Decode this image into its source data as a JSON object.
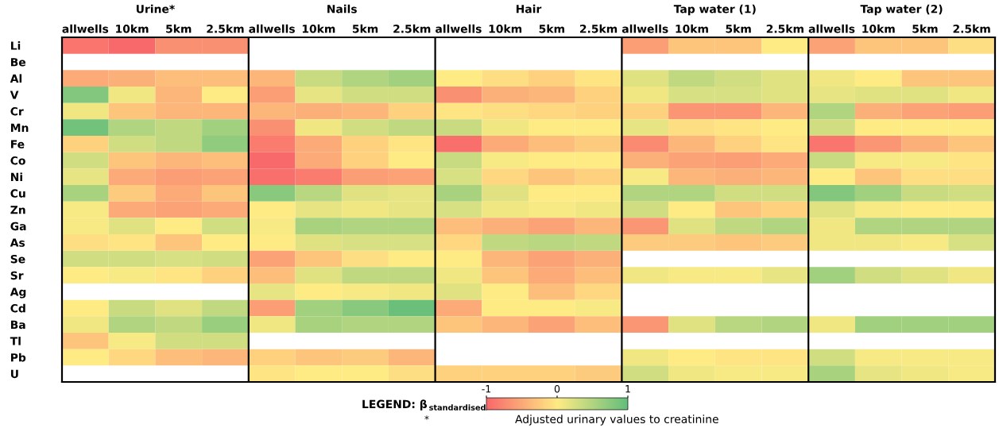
{
  "chart_data": {
    "type": "heatmap",
    "categories": [
      "allwells",
      "10km",
      "5km",
      "2.5km",
      "allwells",
      "10km",
      "5km",
      "2.5km",
      "allwells",
      "10km",
      "5km",
      "2.5km",
      "allwells",
      "10km",
      "5km",
      "2.5km",
      "allwells",
      "10km",
      "5km",
      "2.5km"
    ],
    "y_categories": [
      "Li",
      "Be",
      "Al",
      "V",
      "Cr",
      "Mn",
      "Fe",
      "Co",
      "Ni",
      "Cu",
      "Zn",
      "Ga",
      "As",
      "Se",
      "Sr",
      "Ag",
      "Cd",
      "Ba",
      "Tl",
      "Pb",
      "U"
    ],
    "cells": [
      [
        -0.9,
        -1,
        -0.7,
        -0.7,
        null,
        null,
        null,
        null,
        null,
        null,
        null,
        null,
        -0.6,
        -0.3,
        -0.3,
        0,
        -0.55,
        -0.3,
        -0.3,
        -0.1
      ],
      [
        null,
        null,
        null,
        null,
        null,
        null,
        null,
        null,
        null,
        null,
        null,
        null,
        null,
        null,
        null,
        null,
        null,
        null,
        null,
        null
      ],
      [
        -0.5,
        -0.45,
        -0.35,
        -0.35,
        -0.4,
        0.35,
        0.5,
        0.6,
        0,
        -0.1,
        -0.2,
        -0.05,
        0.2,
        0.4,
        0.3,
        0.2,
        0.1,
        0,
        -0.3,
        -0.3
      ],
      [
        0.8,
        0.1,
        -0.4,
        0,
        -0.6,
        0.15,
        0.3,
        0.3,
        -0.7,
        -0.45,
        -0.4,
        -0.2,
        0.1,
        0.25,
        0.25,
        0.2,
        0.15,
        0.2,
        0.2,
        0.1
      ],
      [
        0.1,
        -0.3,
        -0.4,
        -0.4,
        -0.4,
        -0.45,
        -0.4,
        -0.2,
        -0.05,
        -0.1,
        -0.15,
        -0.2,
        -0.2,
        -0.65,
        -0.65,
        -0.4,
        0.5,
        -0.45,
        -0.55,
        -0.6
      ],
      [
        0.9,
        0.5,
        0.4,
        0.6,
        -0.7,
        0.1,
        0.3,
        0.4,
        0.35,
        0.1,
        0,
        0,
        0.15,
        -0.1,
        -0.05,
        0,
        0.3,
        0,
        0,
        0
      ],
      [
        -0.2,
        0.3,
        0.4,
        0.7,
        -0.85,
        -0.5,
        -0.2,
        -0.05,
        -0.95,
        -0.5,
        -0.35,
        -0.25,
        -0.75,
        -0.4,
        -0.2,
        -0.05,
        -0.9,
        -0.65,
        -0.45,
        -0.3
      ],
      [
        0.3,
        -0.3,
        -0.4,
        -0.35,
        -1,
        -0.5,
        -0.2,
        0,
        0.35,
        0.05,
        0,
        0,
        -0.45,
        -0.55,
        -0.6,
        -0.5,
        0.35,
        0.05,
        0.05,
        -0.05
      ],
      [
        0.15,
        -0.5,
        -0.6,
        -0.55,
        -0.95,
        -0.85,
        -0.6,
        -0.55,
        0.25,
        -0.15,
        -0.3,
        -0.2,
        0.05,
        -0.4,
        -0.45,
        -0.4,
        0,
        -0.3,
        -0.1,
        -0.1
      ],
      [
        0.55,
        -0.25,
        -0.5,
        -0.3,
        0.75,
        0.45,
        0.2,
        0.15,
        0.55,
        0.2,
        0,
        0,
        0.5,
        0.5,
        0.3,
        0.3,
        0.8,
        0.6,
        0.35,
        0.3
      ],
      [
        0.05,
        -0.5,
        -0.55,
        -0.5,
        0,
        0.15,
        0.1,
        0.15,
        0.25,
        0.1,
        0.05,
        0.1,
        0.3,
        0,
        -0.3,
        -0.2,
        0.2,
        0.05,
        0,
        0
      ],
      [
        0.05,
        0.2,
        0,
        0.3,
        0.05,
        0.55,
        0.5,
        0.5,
        -0.35,
        -0.45,
        -0.55,
        -0.4,
        -0.65,
        0.2,
        0.4,
        0.5,
        0.1,
        0.5,
        0.5,
        0.5
      ],
      [
        -0.1,
        -0.05,
        -0.3,
        0,
        0,
        0.2,
        0.25,
        0.25,
        -0.15,
        0.4,
        0.45,
        0.4,
        -0.25,
        -0.25,
        -0.3,
        -0.25,
        0.1,
        0.1,
        0.05,
        0.25
      ],
      [
        0.3,
        0.3,
        0.25,
        0.3,
        -0.55,
        -0.3,
        -0.1,
        0,
        0,
        -0.4,
        -0.55,
        -0.45,
        null,
        null,
        null,
        null,
        null,
        null,
        null,
        null
      ],
      [
        0,
        0.05,
        -0.05,
        -0.2,
        -0.35,
        0.2,
        0.4,
        0.4,
        0.1,
        -0.3,
        -0.5,
        -0.35,
        0.1,
        0.05,
        0.05,
        0.15,
        0.6,
        0.3,
        0.2,
        0.1
      ],
      [
        null,
        null,
        null,
        null,
        0.15,
        0,
        0.05,
        0.1,
        0.2,
        0,
        -0.35,
        -0.15,
        null,
        null,
        null,
        null,
        null,
        null,
        null,
        null
      ],
      [
        0,
        0.35,
        0.2,
        0.4,
        -0.6,
        0.6,
        0.75,
        0.95,
        -0.5,
        0,
        0,
        0.05,
        null,
        null,
        null,
        null,
        null,
        null,
        null,
        null
      ],
      [
        0.1,
        0.5,
        0.4,
        0.65,
        0.1,
        0.55,
        0.5,
        0.5,
        -0.3,
        -0.4,
        -0.55,
        -0.35,
        -0.65,
        0.2,
        0.45,
        0.5,
        0.1,
        0.6,
        0.6,
        0.6
      ],
      [
        -0.3,
        0.05,
        0.3,
        0.3,
        null,
        null,
        null,
        null,
        null,
        null,
        null,
        null,
        null,
        null,
        null,
        null,
        null,
        null,
        null,
        null
      ],
      [
        0,
        -0.15,
        -0.35,
        -0.4,
        -0.2,
        -0.3,
        -0.25,
        -0.4,
        null,
        null,
        null,
        null,
        0.1,
        0,
        -0.05,
        -0.05,
        0.3,
        0.05,
        0.05,
        0.05
      ],
      [
        null,
        null,
        null,
        null,
        -0.05,
        0,
        0,
        -0.1,
        -0.2,
        -0.2,
        -0.2,
        -0.25,
        0.3,
        0.1,
        0.05,
        0.05,
        0.55,
        0.15,
        0.1,
        0.05
      ]
    ],
    "colors": [
      "#f8696b",
      "#ffeb84",
      "#63be7b"
    ],
    "clim": [
      -1,
      1
    ],
    "cticks": [
      -1,
      0,
      1
    ],
    "clabel": "LEGEND: β$_{standardised}$",
    "annotations": [
      "Urine*",
      "Nails",
      "Hair",
      "Tap water (1)",
      "Tap water (2)",
      "*",
      "Adjusted urinary values to creatinine"
    ]
  }
}
